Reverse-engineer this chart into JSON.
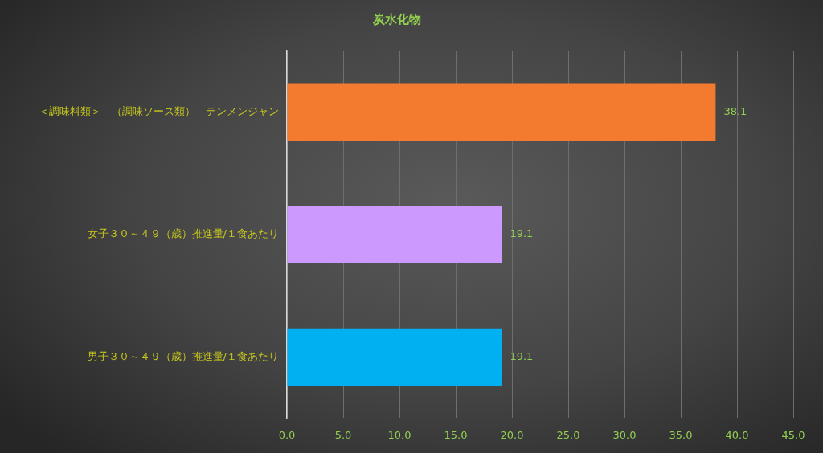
{
  "chart_data": {
    "type": "bar",
    "orientation": "horizontal",
    "title": "炭水化物",
    "categories": [
      "＜調味料類＞　（調味ソース類）　テンメンジャン",
      "女子３０～４９（歳）推進量/１食あたり",
      "男子３０～４９（歳）推進量/１食あたり"
    ],
    "values": [
      38.1,
      19.1,
      19.1
    ],
    "colors": [
      "#f27b30",
      "#cc99ff",
      "#00b0f0"
    ],
    "xlim": [
      0,
      45
    ],
    "xticks": [
      {
        "value": 0,
        "label": "0.0"
      },
      {
        "value": 5,
        "label": "5.0"
      },
      {
        "value": 10,
        "label": "10.0"
      },
      {
        "value": 15,
        "label": "15.0"
      },
      {
        "value": 20,
        "label": "20.0"
      },
      {
        "value": 25,
        "label": "25.0"
      },
      {
        "value": 30,
        "label": "30.0"
      },
      {
        "value": 35,
        "label": "35.0"
      },
      {
        "value": 40,
        "label": "40.0"
      },
      {
        "value": 45,
        "label": "45.0"
      }
    ],
    "grid": "x",
    "data_labels": true
  }
}
